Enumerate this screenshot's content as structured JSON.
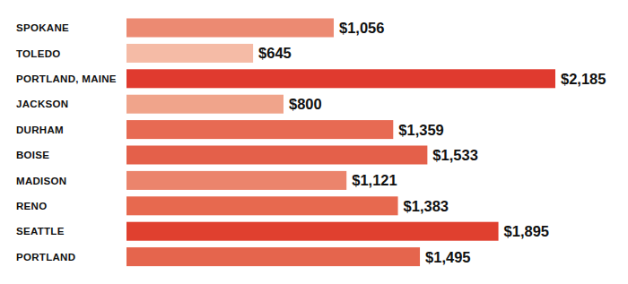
{
  "chart_data": {
    "type": "bar",
    "orientation": "horizontal",
    "categories": [
      "SPOKANE",
      "TOLEDO",
      "PORTLAND, MAINE",
      "JACKSON",
      "DURHAM",
      "BOISE",
      "MADISON",
      "RENO",
      "SEATTLE",
      "PORTLAND"
    ],
    "values": [
      1056,
      645,
      2185,
      800,
      1359,
      1533,
      1121,
      1383,
      1895,
      1495
    ],
    "value_labels": [
      "$1,056",
      "$645",
      "$2,185",
      "$800",
      "$1,359",
      "$1,533",
      "$1,121",
      "$1,383",
      "$1,895",
      "$1,495"
    ],
    "colors": [
      "#ec8a72",
      "#f5bba6",
      "#e03a2f",
      "#f0a48b",
      "#e76a53",
      "#e4604a",
      "#eb846c",
      "#e7694f",
      "#e0402f",
      "#e5654d"
    ],
    "xlim": [
      0,
      2185
    ],
    "data_labels": true,
    "tick_labels": false,
    "grid": false
  }
}
